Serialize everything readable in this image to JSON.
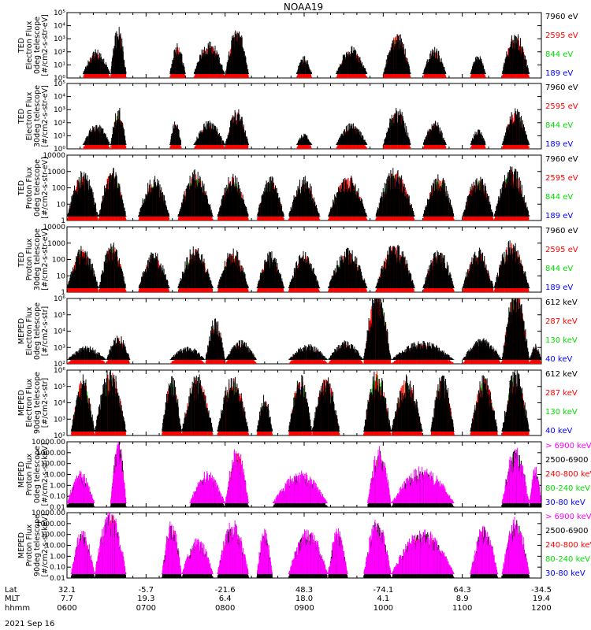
{
  "title": "NOAA19",
  "date_label": "2021 Sep 16",
  "footer": {
    "row_labels": [
      "Lat",
      "MLT",
      "hhmm"
    ],
    "lat": [
      "32.1",
      "-5.7",
      "-21.6",
      "48.3",
      "-74.1",
      "64.3",
      "-34.5"
    ],
    "mlt": [
      "7.7",
      "19.3",
      "6.4",
      "18.0",
      "4.1",
      "8.9",
      "19.4"
    ],
    "hhmm": [
      "0600",
      "0700",
      "0800",
      "0900",
      "1000",
      "1100",
      "1200"
    ]
  },
  "colors": {
    "black": "#000000",
    "red": "#ff0000",
    "green": "#00dd00",
    "blue": "#0000ff",
    "magenta": "#ff00ff"
  },
  "chart_data": [
    {
      "type": "scatter",
      "panel": 1,
      "ylabel": [
        "TED",
        "Electron Flux",
        "0deg telescope",
        "[#/cm2-s-str-eV]"
      ],
      "yscale": "log",
      "ylim": [
        1,
        100000
      ],
      "y_ticks": [
        "10⁰",
        "10¹",
        "10²",
        "10³",
        "10⁴",
        "10⁵"
      ],
      "legend": [
        {
          "label": "7960 eV",
          "color": "#000000"
        },
        {
          "label": "2595 eV",
          "color": "#ff0000"
        },
        {
          "label": "844 eV",
          "color": "#00dd00"
        },
        {
          "label": "189 eV",
          "color": "#0000ff"
        }
      ],
      "x_range_hours": [
        6,
        12
      ],
      "activity": [
        [
          6.2,
          6.55,
          60
        ],
        [
          6.55,
          6.75,
          1500
        ],
        [
          7.3,
          7.5,
          150
        ],
        [
          7.6,
          8.0,
          200
        ],
        [
          8.0,
          8.3,
          1500
        ],
        [
          8.9,
          9.1,
          25
        ],
        [
          9.4,
          9.8,
          100
        ],
        [
          10.0,
          10.35,
          800
        ],
        [
          10.5,
          10.8,
          80
        ],
        [
          11.1,
          11.3,
          30
        ],
        [
          11.5,
          11.85,
          800
        ]
      ]
    },
    {
      "type": "scatter",
      "panel": 2,
      "ylabel": [
        "TED",
        "Electron Flux",
        "30deg telescope",
        "[#/cm2-s-str-eV]"
      ],
      "yscale": "log",
      "ylim": [
        1,
        100000
      ],
      "y_ticks": [
        "10⁰",
        "10¹",
        "10²",
        "10³",
        "10⁴",
        "10⁵"
      ],
      "legend": [
        {
          "label": "7960 eV",
          "color": "#000000"
        },
        {
          "label": "2595 eV",
          "color": "#ff0000"
        },
        {
          "label": "844 eV",
          "color": "#00dd00"
        },
        {
          "label": "189 eV",
          "color": "#0000ff"
        }
      ],
      "x_range_hours": [
        6,
        12
      ],
      "activity": [
        [
          6.2,
          6.55,
          40
        ],
        [
          6.55,
          6.75,
          400
        ],
        [
          7.3,
          7.45,
          60
        ],
        [
          7.6,
          8.0,
          60
        ],
        [
          8.0,
          8.3,
          300
        ],
        [
          8.9,
          9.1,
          10
        ],
        [
          9.4,
          9.8,
          40
        ],
        [
          10.0,
          10.35,
          400
        ],
        [
          10.5,
          10.8,
          60
        ],
        [
          11.1,
          11.3,
          20
        ],
        [
          11.5,
          11.85,
          300
        ]
      ]
    },
    {
      "type": "scatter",
      "panel": 3,
      "ylabel": [
        "TED",
        "Proton Flux",
        "0deg telescope",
        "[#/cm2-s-str-eV]"
      ],
      "yscale": "log",
      "ylim": [
        1,
        10000
      ],
      "y_ticks": [
        "1",
        "10",
        "100",
        "1000",
        "10000"
      ],
      "legend": [
        {
          "label": "7960 eV",
          "color": "#000000"
        },
        {
          "label": "2595 eV",
          "color": "#ff0000"
        },
        {
          "label": "844 eV",
          "color": "#00dd00"
        },
        {
          "label": "189 eV",
          "color": "#0000ff"
        }
      ],
      "x_range_hours": [
        6,
        12
      ],
      "activity": [
        [
          6.0,
          6.4,
          300
        ],
        [
          6.4,
          6.75,
          400
        ],
        [
          6.9,
          7.3,
          150
        ],
        [
          7.4,
          7.85,
          300
        ],
        [
          7.9,
          8.3,
          200
        ],
        [
          8.4,
          8.75,
          150
        ],
        [
          8.8,
          9.2,
          150
        ],
        [
          9.3,
          9.8,
          200
        ],
        [
          9.9,
          10.4,
          400
        ],
        [
          10.5,
          10.9,
          200
        ],
        [
          11.0,
          11.4,
          200
        ],
        [
          11.4,
          11.85,
          500
        ]
      ]
    },
    {
      "type": "scatter",
      "panel": 4,
      "ylabel": [
        "TED",
        "Proton Flux",
        "30deg telescope",
        "[#/cm2-s-str-eV]"
      ],
      "yscale": "log",
      "ylim": [
        1,
        10000
      ],
      "y_ticks": [
        "1",
        "10",
        "100",
        "1000",
        "10000"
      ],
      "legend": [
        {
          "label": "7960 eV",
          "color": "#000000"
        },
        {
          "label": "2595 eV",
          "color": "#ff0000"
        },
        {
          "label": "844 eV",
          "color": "#00dd00"
        },
        {
          "label": "189 eV",
          "color": "#0000ff"
        }
      ],
      "x_range_hours": [
        6,
        12
      ],
      "activity": [
        [
          6.0,
          6.4,
          200
        ],
        [
          6.4,
          6.75,
          300
        ],
        [
          6.9,
          7.3,
          100
        ],
        [
          7.4,
          7.85,
          200
        ],
        [
          7.9,
          8.3,
          150
        ],
        [
          8.4,
          8.75,
          100
        ],
        [
          8.8,
          9.2,
          100
        ],
        [
          9.3,
          9.8,
          150
        ],
        [
          9.9,
          10.4,
          300
        ],
        [
          10.5,
          10.9,
          150
        ],
        [
          11.0,
          11.4,
          150
        ],
        [
          11.4,
          11.85,
          400
        ]
      ]
    },
    {
      "type": "scatter",
      "panel": 5,
      "ylabel": [
        "MEPED",
        "Electron Flux",
        "0deg telescope",
        "[#/cm2-s-str]"
      ],
      "yscale": "log",
      "ylim": [
        100,
        1000000
      ],
      "y_ticks": [
        "10²",
        "10³",
        "10⁴",
        "10⁵",
        "10⁶"
      ],
      "legend": [
        {
          "label": "612 keV",
          "color": "#000000"
        },
        {
          "label": "287 keV",
          "color": "#ff0000"
        },
        {
          "label": "130 keV",
          "color": "#00dd00"
        },
        {
          "label": "40 keV",
          "color": "#0000ff"
        }
      ],
      "x_range_hours": [
        6,
        12
      ],
      "activity": [
        [
          6.0,
          6.5,
          800
        ],
        [
          6.5,
          6.8,
          3000
        ],
        [
          7.3,
          7.75,
          800
        ],
        [
          7.75,
          8.0,
          20000
        ],
        [
          8.0,
          8.4,
          1500
        ],
        [
          8.8,
          9.3,
          1000
        ],
        [
          9.3,
          9.75,
          1500
        ],
        [
          9.75,
          10.1,
          500000
        ],
        [
          10.1,
          10.9,
          1500
        ],
        [
          11.0,
          11.5,
          2000
        ],
        [
          11.5,
          11.85,
          500000
        ],
        [
          11.85,
          12.0,
          1000
        ]
      ]
    },
    {
      "type": "scatter",
      "panel": 6,
      "ylabel": [
        "MEPED",
        "Electron Flux",
        "90deg telescope",
        "[#/cm2-s-str]"
      ],
      "yscale": "log",
      "ylim": [
        100,
        1000000
      ],
      "y_ticks": [
        "10²",
        "10³",
        "10⁴",
        "10⁵",
        "10⁶"
      ],
      "legend": [
        {
          "label": "612 keV",
          "color": "#000000"
        },
        {
          "label": "287 keV",
          "color": "#ff0000"
        },
        {
          "label": "130 keV",
          "color": "#00dd00"
        },
        {
          "label": "40 keV",
          "color": "#0000ff"
        }
      ],
      "x_range_hours": [
        6,
        12
      ],
      "activity": [
        [
          6.05,
          6.35,
          100000
        ],
        [
          6.35,
          6.75,
          200000
        ],
        [
          7.2,
          7.45,
          100000
        ],
        [
          7.45,
          7.85,
          100000
        ],
        [
          7.9,
          8.3,
          100000
        ],
        [
          8.4,
          8.6,
          10000
        ],
        [
          8.8,
          9.1,
          100000
        ],
        [
          9.1,
          9.45,
          100000
        ],
        [
          9.75,
          10.1,
          200000
        ],
        [
          10.1,
          10.5,
          100000
        ],
        [
          10.6,
          10.9,
          100000
        ],
        [
          11.1,
          11.45,
          100000
        ],
        [
          11.5,
          11.85,
          200000
        ]
      ]
    },
    {
      "type": "scatter",
      "panel": 7,
      "ylabel": [
        "MEPED",
        "Proton Flux",
        "0deg telescope",
        "[#/cm2-s-sr-keV]"
      ],
      "yscale": "log",
      "ylim": [
        0.01,
        10000
      ],
      "y_ticks": [
        "0.01",
        "0.10",
        "1.00",
        "10.00",
        "100.00",
        "1000.00",
        "10000.00"
      ],
      "legend": [
        {
          "label": "> 6900 keV",
          "color": "#ff00ff"
        },
        {
          "label": "2500-6900",
          "color": "#000000"
        },
        {
          "label": "240-800 keV",
          "color": "#ff0000"
        },
        {
          "label": "80-240 keV",
          "color": "#00dd00"
        },
        {
          "label": "30-80 keV",
          "color": "#0000ff"
        }
      ],
      "x_range_hours": [
        6,
        12
      ],
      "activity": [
        [
          6.0,
          6.35,
          5
        ],
        [
          6.55,
          6.75,
          2000
        ],
        [
          7.55,
          8.0,
          5
        ],
        [
          8.0,
          8.3,
          300
        ],
        [
          8.6,
          9.3,
          5
        ],
        [
          9.8,
          10.1,
          300
        ],
        [
          10.1,
          10.9,
          10
        ],
        [
          11.5,
          11.85,
          300
        ],
        [
          11.85,
          12.0,
          10
        ]
      ]
    },
    {
      "type": "scatter",
      "panel": 8,
      "ylabel": [
        "MEPED",
        "Proton Flux",
        "90deg telescope",
        "[#/cm2-s-sr-keV]"
      ],
      "yscale": "log",
      "ylim": [
        0.01,
        10000
      ],
      "y_ticks": [
        "0.01",
        "0.10",
        "1.00",
        "10.00",
        "100.00",
        "1000.00",
        "10000.00"
      ],
      "legend": [
        {
          "label": "> 6900 keV",
          "color": "#ff00ff"
        },
        {
          "label": "2500-6900",
          "color": "#000000"
        },
        {
          "label": "240-800 keV",
          "color": "#ff0000"
        },
        {
          "label": "80-240 keV",
          "color": "#00dd00"
        },
        {
          "label": "30-80 keV",
          "color": "#0000ff"
        }
      ],
      "x_range_hours": [
        6,
        12
      ],
      "activity": [
        [
          6.05,
          6.35,
          50
        ],
        [
          6.35,
          6.75,
          1500
        ],
        [
          7.2,
          7.45,
          200
        ],
        [
          7.45,
          7.85,
          10
        ],
        [
          7.9,
          8.3,
          200
        ],
        [
          8.4,
          8.6,
          50
        ],
        [
          8.8,
          9.3,
          50
        ],
        [
          9.3,
          9.55,
          50
        ],
        [
          9.75,
          10.1,
          300
        ],
        [
          10.1,
          10.9,
          50
        ],
        [
          11.1,
          11.45,
          100
        ],
        [
          11.5,
          11.85,
          300
        ]
      ]
    }
  ]
}
